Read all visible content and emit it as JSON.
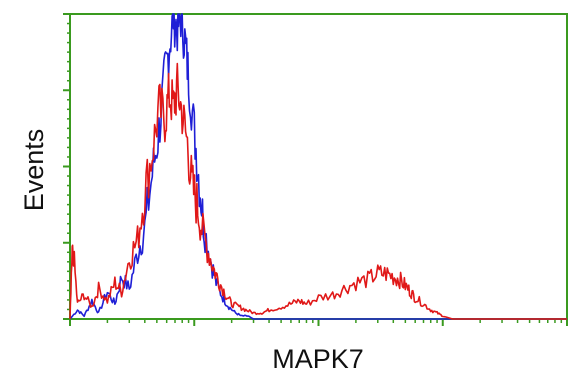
{
  "chart_data": {
    "type": "line",
    "xlabel": "MAPK7",
    "ylabel": "Events",
    "x_scale": "log",
    "xlim": [
      1,
      10000
    ],
    "ylim": [
      0,
      100
    ],
    "grid": false,
    "legend": "none",
    "axis_color": "#3a9a1f",
    "series": [
      {
        "color": "#1f1fd6",
        "x": [
          1,
          1.15,
          1.3,
          1.5,
          1.7,
          2,
          2.3,
          2.6,
          3,
          3.5,
          4,
          4.6,
          5.2,
          5.8,
          6.3,
          6.8,
          7.3,
          7.8,
          8.4,
          9,
          10,
          11,
          12,
          13.5,
          15,
          17,
          19,
          21.5,
          24,
          27,
          30,
          34,
          40,
          50,
          60,
          80,
          100,
          200,
          500,
          1000,
          10000
        ],
        "y": [
          0,
          3,
          1,
          6,
          2,
          9,
          5,
          14,
          10,
          22,
          30,
          48,
          62,
          80,
          90,
          100,
          96,
          100,
          92,
          80,
          62,
          45,
          30,
          20,
          12,
          7,
          4,
          2,
          1,
          1,
          0,
          0,
          0,
          0,
          0,
          0,
          0,
          0,
          0,
          0,
          0
        ]
      },
      {
        "color": "#e01818",
        "x": [
          1,
          1.05,
          1.15,
          1.3,
          1.5,
          1.7,
          2,
          2.3,
          2.6,
          3,
          3.5,
          4,
          4.6,
          5.2,
          5.8,
          6.3,
          6.8,
          7.3,
          8,
          8.8,
          9.6,
          10.5,
          11.5,
          13,
          14.5,
          16,
          18,
          20,
          23,
          26,
          30,
          35,
          40,
          50,
          60,
          70,
          80,
          100,
          130,
          160,
          200,
          250,
          300,
          350,
          400,
          450,
          500,
          550,
          600,
          700,
          800,
          900,
          1000,
          1200,
          1500,
          2000,
          3000,
          10000
        ],
        "y": [
          0,
          25,
          5,
          8,
          4,
          10,
          6,
          12,
          9,
          20,
          26,
          42,
          55,
          70,
          66,
          74,
          70,
          76,
          68,
          58,
          44,
          38,
          30,
          22,
          16,
          12,
          8,
          5,
          4,
          3,
          2,
          2,
          3,
          4,
          5,
          6,
          5,
          7,
          8,
          10,
          12,
          13,
          15,
          15,
          14,
          13,
          11,
          9,
          7,
          5,
          3,
          2,
          1,
          0,
          0,
          0,
          0,
          0
        ]
      }
    ]
  }
}
